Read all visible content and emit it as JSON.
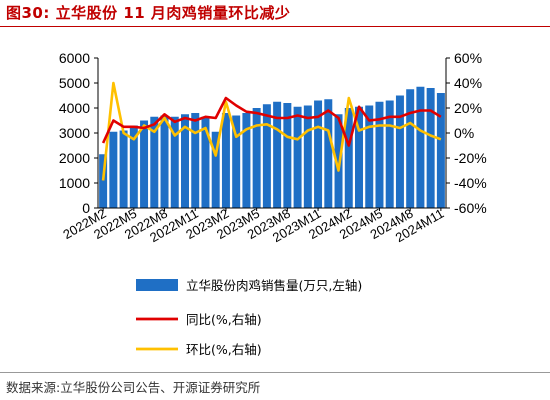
{
  "figure_label": "图30:",
  "figure_title": "立华股份 11 月肉鸡销量环比减少",
  "source_note": "数据来源:立华股份公司公告、开源证券研究所",
  "colors": {
    "bar": "#1f6fc5",
    "yoy": "#e00000",
    "mom": "#ffc000",
    "title": "#c00000"
  },
  "chart_data": {
    "type": "bar",
    "x": [
      "2022M2",
      "2022M3",
      "2022M4",
      "2022M5",
      "2022M6",
      "2022M7",
      "2022M8",
      "2022M9",
      "2022M10",
      "2022M11",
      "2022M12",
      "2023M1",
      "2023M2",
      "2023M3",
      "2023M4",
      "2023M5",
      "2023M6",
      "2023M7",
      "2023M8",
      "2023M9",
      "2023M10",
      "2023M11",
      "2023M12",
      "2024M1",
      "2024M2",
      "2024M3",
      "2024M4",
      "2024M5",
      "2024M6",
      "2024M7",
      "2024M8",
      "2024M9",
      "2024M10",
      "2024M11"
    ],
    "x_tick_labels": [
      "2022M2",
      "2022M5",
      "2022M8",
      "2022M11",
      "2023M2",
      "2023M5",
      "2023M8",
      "2023M11",
      "2024M2",
      "2024M5",
      "2024M8",
      "2024M11"
    ],
    "left_axis": {
      "ylim": [
        0,
        6000
      ],
      "ticks": [
        "0",
        "1000",
        "2000",
        "3000",
        "4000",
        "5000",
        "6000"
      ]
    },
    "right_axis": {
      "ylim": [
        -60,
        60
      ],
      "ticks": [
        "-60%",
        "-40%",
        "-20%",
        "0%",
        "20%",
        "40%",
        "60%"
      ]
    },
    "series": [
      {
        "name": "立华股份肉鸡销售量(万只,左轴)",
        "type": "bar",
        "axis": "left",
        "values": [
          2150,
          3050,
          3100,
          3300,
          3500,
          3650,
          3700,
          3650,
          3750,
          3800,
          3650,
          3050,
          3800,
          3700,
          3800,
          4000,
          4150,
          4250,
          4200,
          4050,
          4100,
          4300,
          4350,
          3750,
          4000,
          4050,
          4100,
          4250,
          4300,
          4500,
          4750,
          4850,
          4800,
          4600
        ]
      },
      {
        "name": "同比(%,右轴)",
        "type": "line",
        "axis": "right",
        "values": [
          -8,
          10,
          5,
          5,
          4,
          7,
          15,
          9,
          12,
          10,
          13,
          12,
          28,
          22,
          17,
          16,
          14,
          12,
          12,
          14,
          12,
          13,
          18,
          12,
          -10,
          21,
          10,
          11,
          13,
          13,
          16,
          18,
          18,
          13
        ]
      },
      {
        "name": "环比(%,右轴)",
        "type": "line",
        "axis": "right",
        "values": [
          -38,
          40,
          0,
          -5,
          6,
          1,
          12,
          -2,
          5,
          0,
          4,
          -18,
          25,
          -3,
          3,
          6,
          7,
          3,
          -3,
          -5,
          2,
          5,
          2,
          -30,
          28,
          2,
          5,
          6,
          6,
          4,
          8,
          2,
          -2,
          -5
        ]
      }
    ]
  }
}
